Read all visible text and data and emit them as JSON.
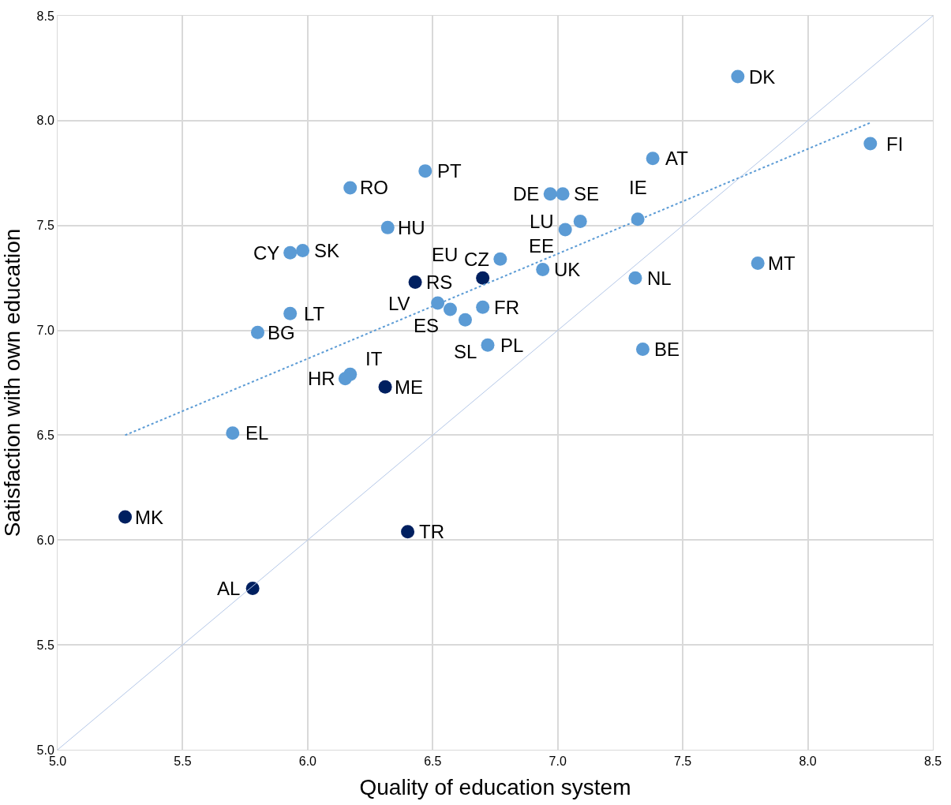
{
  "chart_data": {
    "type": "scatter",
    "xlabel": "Quality of education system",
    "ylabel": "Satisfaction with own education",
    "xlim": [
      5.0,
      8.5
    ],
    "xticks": [
      {
        "value": 5.0,
        "label": "5.0"
      },
      5.5,
      {
        "value": 6.0,
        "label": "6.0"
      },
      6.5,
      {
        "value": 7.0,
        "label": "7.0"
      },
      7.5,
      {
        "value": 8.0,
        "label": "8.0"
      },
      8.5
    ],
    "ylim": [
      5.0,
      8.5
    ],
    "yticks": [
      {
        "value": 5.0,
        "label": "5.0"
      },
      5.5,
      {
        "value": 6.0,
        "label": "6.0"
      },
      6.5,
      {
        "value": 7.0,
        "label": "7.0"
      },
      7.5,
      {
        "value": 8.0,
        "label": "8.0"
      },
      8.5
    ],
    "grid": true,
    "marker": "circle",
    "series": [
      {
        "color": "#5b9bd5",
        "x": [
          7.72,
          8.25,
          7.38,
          6.47,
          6.17,
          6.97,
          7.02,
          6.32,
          7.09,
          7.32,
          7.03,
          5.93,
          5.98,
          7.8,
          6.77,
          6.94,
          7.31,
          5.93,
          6.52,
          6.57,
          6.63,
          6.7,
          5.8,
          6.72,
          7.34,
          6.17,
          6.15,
          5.7
        ],
        "values": [
          8.21,
          7.89,
          7.82,
          7.76,
          7.68,
          7.65,
          7.65,
          7.49,
          7.52,
          7.53,
          7.48,
          7.37,
          7.38,
          7.32,
          7.34,
          7.29,
          7.25,
          7.08,
          7.13,
          7.1,
          7.05,
          7.11,
          6.99,
          6.93,
          6.91,
          6.79,
          6.77,
          6.51
        ]
      },
      {
        "color": "#002060",
        "x": [
          6.43,
          6.7,
          6.31,
          5.27,
          6.4,
          5.78
        ],
        "values": [
          7.23,
          7.25,
          6.73,
          6.11,
          6.04,
          5.77
        ]
      },
      {
        "type": "line",
        "color": "#5b9bd5",
        "line_style": "dotted",
        "marker": "none",
        "x": [
          5.27,
          8.25
        ],
        "values": [
          6.5,
          7.99
        ]
      },
      {
        "type": "line",
        "color": "#b4c7e7",
        "line_style": "solid",
        "marker": "none",
        "x": [
          5.0,
          8.5
        ],
        "values": [
          5.0,
          8.5
        ]
      }
    ],
    "annotations": [
      {
        "text": "DK",
        "x": 7.72,
        "y": 8.21
      },
      {
        "text": "FI",
        "x": 8.25,
        "y": 7.89
      },
      {
        "text": "AT",
        "x": 7.38,
        "y": 7.82
      },
      {
        "text": "PT",
        "x": 6.47,
        "y": 7.76
      },
      {
        "text": "RO",
        "x": 6.17,
        "y": 7.68
      },
      {
        "text": "DE",
        "x": 6.97,
        "y": 7.65
      },
      {
        "text": "SE",
        "x": 7.02,
        "y": 7.65
      },
      {
        "text": "HU",
        "x": 6.32,
        "y": 7.49
      },
      {
        "text": "LU",
        "x": 7.09,
        "y": 7.52
      },
      {
        "text": "IE",
        "x": 7.32,
        "y": 7.53
      },
      {
        "text": "EE",
        "x": 7.03,
        "y": 7.48
      },
      {
        "text": "CY",
        "x": 5.93,
        "y": 7.37
      },
      {
        "text": "SK",
        "x": 5.98,
        "y": 7.38
      },
      {
        "text": "MT",
        "x": 7.8,
        "y": 7.32
      },
      {
        "text": "CZ",
        "x": 6.77,
        "y": 7.34
      },
      {
        "text": "UK",
        "x": 6.94,
        "y": 7.29
      },
      {
        "text": "NL",
        "x": 7.31,
        "y": 7.25
      },
      {
        "text": "LT",
        "x": 5.93,
        "y": 7.08
      },
      {
        "text": "LV",
        "x": 6.52,
        "y": 7.13
      },
      {
        "text": "ES",
        "x": 6.57,
        "y": 7.1
      },
      {
        "text": "SL",
        "x": 6.63,
        "y": 7.05
      },
      {
        "text": "FR",
        "x": 6.7,
        "y": 7.11
      },
      {
        "text": "BG",
        "x": 5.8,
        "y": 6.99
      },
      {
        "text": "PL",
        "x": 6.72,
        "y": 6.93
      },
      {
        "text": "BE",
        "x": 7.34,
        "y": 6.91
      },
      {
        "text": "IT",
        "x": 6.17,
        "y": 6.79
      },
      {
        "text": "HR",
        "x": 6.15,
        "y": 6.77
      },
      {
        "text": "EL",
        "x": 5.7,
        "y": 6.51
      },
      {
        "text": "RS",
        "x": 6.43,
        "y": 7.23
      },
      {
        "text": "EU",
        "x": 6.7,
        "y": 7.25
      },
      {
        "text": "ME",
        "x": 6.31,
        "y": 6.73
      },
      {
        "text": "MK",
        "x": 5.27,
        "y": 6.11
      },
      {
        "text": "TR",
        "x": 6.4,
        "y": 6.04
      },
      {
        "text": "AL",
        "x": 5.78,
        "y": 5.77
      }
    ]
  }
}
